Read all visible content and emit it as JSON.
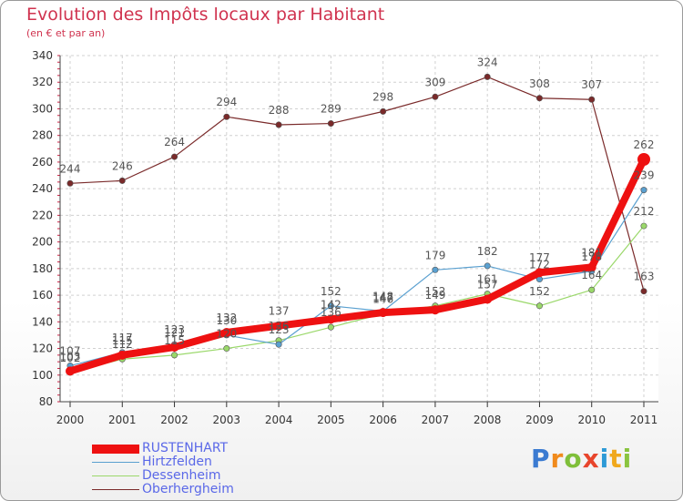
{
  "title": "Evolution des Impôts locaux par Habitant",
  "subtitle": "(en € et par an)",
  "brand": {
    "letters": [
      "P",
      "r",
      "o",
      "x",
      "i",
      "t",
      "i"
    ],
    "colors": [
      "#3b7bd1",
      "#f08a1c",
      "#7fbf3a",
      "#e8452c",
      "#2d9ad6",
      "#f0a81c",
      "#8ac43f"
    ]
  },
  "chart_data": {
    "type": "line",
    "title": "Evolution des Impôts locaux par Habitant",
    "subtitle": "(en € et par an)",
    "xlabel": "",
    "ylabel": "",
    "ylim": [
      80,
      340
    ],
    "yticks": [
      80,
      100,
      120,
      140,
      160,
      180,
      200,
      220,
      240,
      260,
      280,
      300,
      320,
      340
    ],
    "x": [
      "2000",
      "2001",
      "2002",
      "2003",
      "2004",
      "2005",
      "2006",
      "2007",
      "2008",
      "2009",
      "2010",
      "2011"
    ],
    "grid": true,
    "legend_position": "bottom-left",
    "series": [
      {
        "name": "RUSTENHART",
        "color": "#ee1111",
        "values": [
          103,
          115,
          121,
          132,
          137,
          142,
          147,
          149,
          157,
          177,
          181,
          262
        ]
      },
      {
        "name": "Hirtzfelden",
        "color": "#5aa0d0",
        "values": [
          107,
          117,
          123,
          130,
          123,
          152,
          148,
          179,
          182,
          172,
          178,
          239
        ]
      },
      {
        "name": "Dessenheim",
        "color": "#9ad86a",
        "values": [
          102,
          112,
          115,
          120,
          126,
          136,
          146,
          152,
          161,
          152,
          164,
          212
        ]
      },
      {
        "name": "Oberhergheim",
        "color": "#7a2a2a",
        "values": [
          244,
          246,
          264,
          294,
          288,
          289,
          298,
          309,
          324,
          308,
          307,
          163
        ]
      }
    ]
  }
}
